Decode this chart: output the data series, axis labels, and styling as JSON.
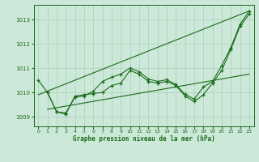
{
  "title": "Graphe pression niveau de la mer (hPa)",
  "background_color": "#cce8d8",
  "grid_color": "#aacfbb",
  "line_color": "#1a6b1a",
  "xlim": [
    -0.5,
    23.5
  ],
  "ylim": [
    1008.6,
    1013.6
  ],
  "yticks": [
    1009,
    1010,
    1011,
    1012,
    1013
  ],
  "xticks": [
    0,
    1,
    2,
    3,
    4,
    5,
    6,
    7,
    8,
    9,
    10,
    11,
    12,
    13,
    14,
    15,
    16,
    17,
    18,
    19,
    20,
    21,
    22,
    23
  ],
  "series1_straight": {
    "x": [
      0,
      23
    ],
    "y": [
      1009.9,
      1013.35
    ]
  },
  "series2": {
    "x": [
      0,
      1,
      2,
      3,
      4,
      5,
      6,
      7,
      8,
      9,
      10,
      11,
      12,
      13,
      14,
      15,
      16,
      17,
      18,
      19,
      20,
      21,
      22,
      23
    ],
    "y": [
      1010.5,
      1010.0,
      1009.2,
      1009.15,
      1009.8,
      1009.85,
      1010.05,
      1010.45,
      1010.62,
      1010.75,
      1011.0,
      1010.85,
      1010.55,
      1010.45,
      1010.52,
      1010.32,
      1009.92,
      1009.72,
      1010.22,
      1010.45,
      1011.1,
      1011.85,
      1012.8,
      1013.35
    ]
  },
  "series3": {
    "x": [
      1,
      2,
      3,
      4,
      5,
      6,
      7,
      8,
      9,
      10,
      11,
      12,
      13,
      14,
      15,
      16,
      17,
      18,
      19,
      20,
      21,
      22,
      23
    ],
    "y": [
      1010.0,
      1009.2,
      1009.1,
      1009.85,
      1009.9,
      1009.95,
      1010.0,
      1010.28,
      1010.38,
      1010.9,
      1010.75,
      1010.45,
      1010.38,
      1010.45,
      1010.28,
      1009.85,
      1009.62,
      1009.9,
      1010.38,
      1010.9,
      1011.78,
      1012.72,
      1013.22
    ]
  },
  "series4_straight": {
    "x": [
      1,
      23
    ],
    "y": [
      1009.3,
      1010.75
    ]
  }
}
